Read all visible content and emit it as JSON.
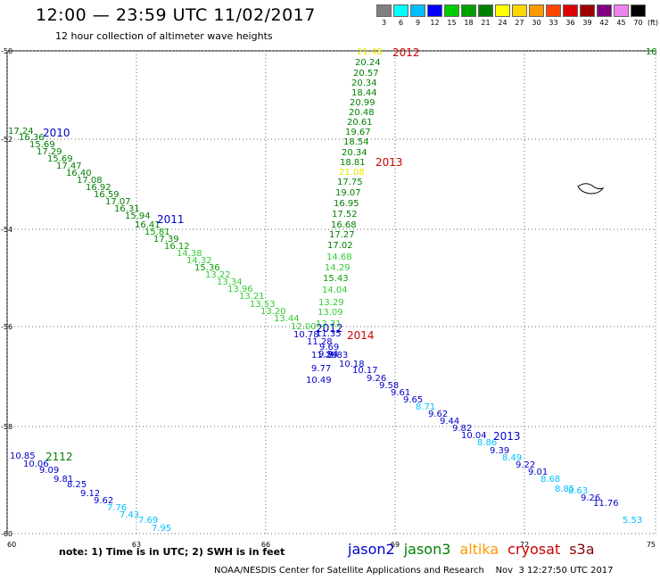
{
  "title": "12:00 — 23:59 UTC 11/02/2017",
  "subtitle": "12 hour collection of altimeter wave heights",
  "colorbar": {
    "labels": [
      "3",
      "6",
      "9",
      "12",
      "15",
      "18",
      "21",
      "24",
      "27",
      "30",
      "33",
      "36",
      "39",
      "42",
      "45",
      "70"
    ],
    "colors": [
      "#808080",
      "#00ffff",
      "#00bfff",
      "#0000ff",
      "#00cc00",
      "#00a000",
      "#008000",
      "#ffff00",
      "#ffd700",
      "#ff9900",
      "#ff4500",
      "#e00000",
      "#a00000",
      "#800080",
      "#ee82ee",
      "#000000"
    ],
    "unit": "(ft)"
  },
  "axes": {
    "lat_labels": [
      "-50",
      "-52",
      "-54",
      "-56",
      "-58",
      "-60"
    ],
    "lon_labels": [
      "60",
      "63",
      "66",
      "69",
      "72",
      "75"
    ]
  },
  "tracks": [
    {
      "hour_labels": [
        {
          "text": "2010",
          "color": "#0000cc"
        },
        {
          "text": "2011",
          "color": "#0000cc"
        },
        {
          "text": "2012",
          "color": "#0000cc"
        },
        {
          "text": "2013",
          "color": "#0000cc"
        }
      ],
      "points": [
        {
          "v": "17.24",
          "c": "#008000"
        },
        {
          "v": "16.36",
          "c": "#008000"
        },
        {
          "v": "15.69",
          "c": "#008000"
        },
        {
          "v": "17.29",
          "c": "#008000"
        },
        {
          "v": "15.69",
          "c": "#008000"
        },
        {
          "v": "17.47",
          "c": "#008000"
        },
        {
          "v": "16.40",
          "c": "#008000"
        },
        {
          "v": "17.08",
          "c": "#008000"
        },
        {
          "v": "16.92",
          "c": "#008000"
        },
        {
          "v": "16.59",
          "c": "#008000"
        },
        {
          "v": "17.07",
          "c": "#008000"
        },
        {
          "v": "16.31",
          "c": "#008000"
        },
        {
          "v": "15.94",
          "c": "#008000"
        },
        {
          "v": "16.41",
          "c": "#008000"
        },
        {
          "v": "15.81",
          "c": "#00a000"
        },
        {
          "v": "17.39",
          "c": "#008000"
        },
        {
          "v": "16.12",
          "c": "#00a000"
        },
        {
          "v": "14.38",
          "c": "#33cc33"
        },
        {
          "v": "14.32",
          "c": "#33cc33"
        },
        {
          "v": "15.36",
          "c": "#00a000"
        },
        {
          "v": "13.22",
          "c": "#33cc33"
        },
        {
          "v": "13.34",
          "c": "#33cc33"
        },
        {
          "v": "13.96",
          "c": "#33cc33"
        },
        {
          "v": "13.21",
          "c": "#33cc33"
        },
        {
          "v": "13.53",
          "c": "#33cc33"
        },
        {
          "v": "13.20",
          "c": "#33cc33"
        },
        {
          "v": "13.44",
          "c": "#33cc33"
        },
        {
          "v": "12.00",
          "c": "#33cc33"
        },
        {
          "v": "10.78",
          "c": "#0000cc"
        },
        {
          "v": "11.35",
          "c": "#0000cc"
        },
        {
          "v": "11.28",
          "c": "#0000cc"
        },
        {
          "v": "9.69",
          "c": "#0000cc"
        },
        {
          "v": "9.94",
          "c": "#0000cc"
        },
        {
          "v": "11.29",
          "c": "#0000cc"
        },
        {
          "v": "9.83",
          "c": "#0000cc"
        },
        {
          "v": "10.18",
          "c": "#0000cc"
        },
        {
          "v": "10.17",
          "c": "#0000cc"
        },
        {
          "v": "9.26",
          "c": "#0000cc"
        },
        {
          "v": "9.58",
          "c": "#0000cc"
        },
        {
          "v": "9.61",
          "c": "#0000cc"
        },
        {
          "v": "9.65",
          "c": "#0000cc"
        },
        {
          "v": "8.71",
          "c": "#00bfff"
        },
        {
          "v": "9.62",
          "c": "#0000cc"
        },
        {
          "v": "9.44",
          "c": "#0000cc"
        },
        {
          "v": "9.82",
          "c": "#0000cc"
        },
        {
          "v": "10.04",
          "c": "#0000cc"
        },
        {
          "v": "8.86",
          "c": "#00bfff"
        },
        {
          "v": "9.39",
          "c": "#0000cc"
        },
        {
          "v": "8.49",
          "c": "#00bfff"
        },
        {
          "v": "9.22",
          "c": "#0000cc"
        },
        {
          "v": "9.01",
          "c": "#0000cc"
        },
        {
          "v": "8.68",
          "c": "#00bfff"
        },
        {
          "v": "8.85",
          "c": "#00bfff"
        },
        {
          "v": "8.63",
          "c": "#00bfff"
        },
        {
          "v": "9.26",
          "c": "#0000cc"
        },
        {
          "v": "11.76",
          "c": "#0000cc"
        }
      ]
    },
    {
      "hour_labels": [
        {
          "text": "2012",
          "color": "#cc0000"
        },
        {
          "text": "2013",
          "color": "#cc0000"
        },
        {
          "text": "2014",
          "color": "#cc0000"
        }
      ],
      "points": [
        {
          "v": "21.48",
          "c": "#e6e600"
        },
        {
          "v": "20.24",
          "c": "#008000"
        },
        {
          "v": "20.57",
          "c": "#008000"
        },
        {
          "v": "20.34",
          "c": "#008000"
        },
        {
          "v": "18.44",
          "c": "#008000"
        },
        {
          "v": "20.99",
          "c": "#008000"
        },
        {
          "v": "20.48",
          "c": "#008000"
        },
        {
          "v": "20.61",
          "c": "#008000"
        },
        {
          "v": "19.67",
          "c": "#008000"
        },
        {
          "v": "18.54",
          "c": "#008000"
        },
        {
          "v": "20.34",
          "c": "#008000"
        },
        {
          "v": "18.81",
          "c": "#008000"
        },
        {
          "v": "21.08",
          "c": "#e6e600"
        },
        {
          "v": "17.75",
          "c": "#008000"
        },
        {
          "v": "19.07",
          "c": "#008000"
        },
        {
          "v": "16.95",
          "c": "#008000"
        },
        {
          "v": "17.52",
          "c": "#008000"
        },
        {
          "v": "16.68",
          "c": "#008000"
        },
        {
          "v": "17.27",
          "c": "#008000"
        },
        {
          "v": "17.02",
          "c": "#008000"
        },
        {
          "v": "14.68",
          "c": "#33cc33"
        },
        {
          "v": "14.29",
          "c": "#33cc33"
        },
        {
          "v": "15.43",
          "c": "#00a000"
        },
        {
          "v": "14.04",
          "c": "#33cc33"
        },
        {
          "v": "13.29",
          "c": "#33cc33"
        },
        {
          "v": "13.09",
          "c": "#33cc33"
        },
        {
          "v": "12.31",
          "c": "#33cc33"
        },
        {
          "v": "9.77",
          "c": "#0000cc"
        },
        {
          "v": "10.49",
          "c": "#0000cc"
        }
      ]
    },
    {
      "hour_labels": [
        {
          "text": "2112",
          "color": "#008000"
        }
      ],
      "points": [
        {
          "v": "10.85",
          "c": "#0000cc"
        },
        {
          "v": "10.06",
          "c": "#0000cc"
        },
        {
          "v": "9.09",
          "c": "#0000cc"
        },
        {
          "v": "9.81",
          "c": "#0000cc"
        },
        {
          "v": "8.25",
          "c": "#0000cc"
        },
        {
          "v": "9.12",
          "c": "#0000cc"
        },
        {
          "v": "9.62",
          "c": "#0000cc"
        },
        {
          "v": "7.76",
          "c": "#00bfff"
        },
        {
          "v": "7.43",
          "c": "#00bfff"
        },
        {
          "v": "7.69",
          "c": "#00bfff"
        },
        {
          "v": "7.95",
          "c": "#00bfff"
        }
      ]
    },
    {
      "hour_labels": [],
      "points": [
        {
          "v": "5.53",
          "c": "#00bfff"
        },
        {
          "v": "18",
          "c": "#008000"
        }
      ]
    }
  ],
  "note": "note: 1) Time is in UTC; 2) SWH is in feet",
  "satellites": [
    {
      "name": "jason2",
      "color": "#0000cc"
    },
    {
      "name": "jason3",
      "color": "#008000"
    },
    {
      "name": "altika",
      "color": "#ff9900"
    },
    {
      "name": "cryosat",
      "color": "#cc0000"
    },
    {
      "name": "s3a",
      "color": "#880000"
    }
  ],
  "footer": "NOAA/NESDIS Center for Satellite Applications and Research    Nov  3 12:27:50 UTC 2017"
}
